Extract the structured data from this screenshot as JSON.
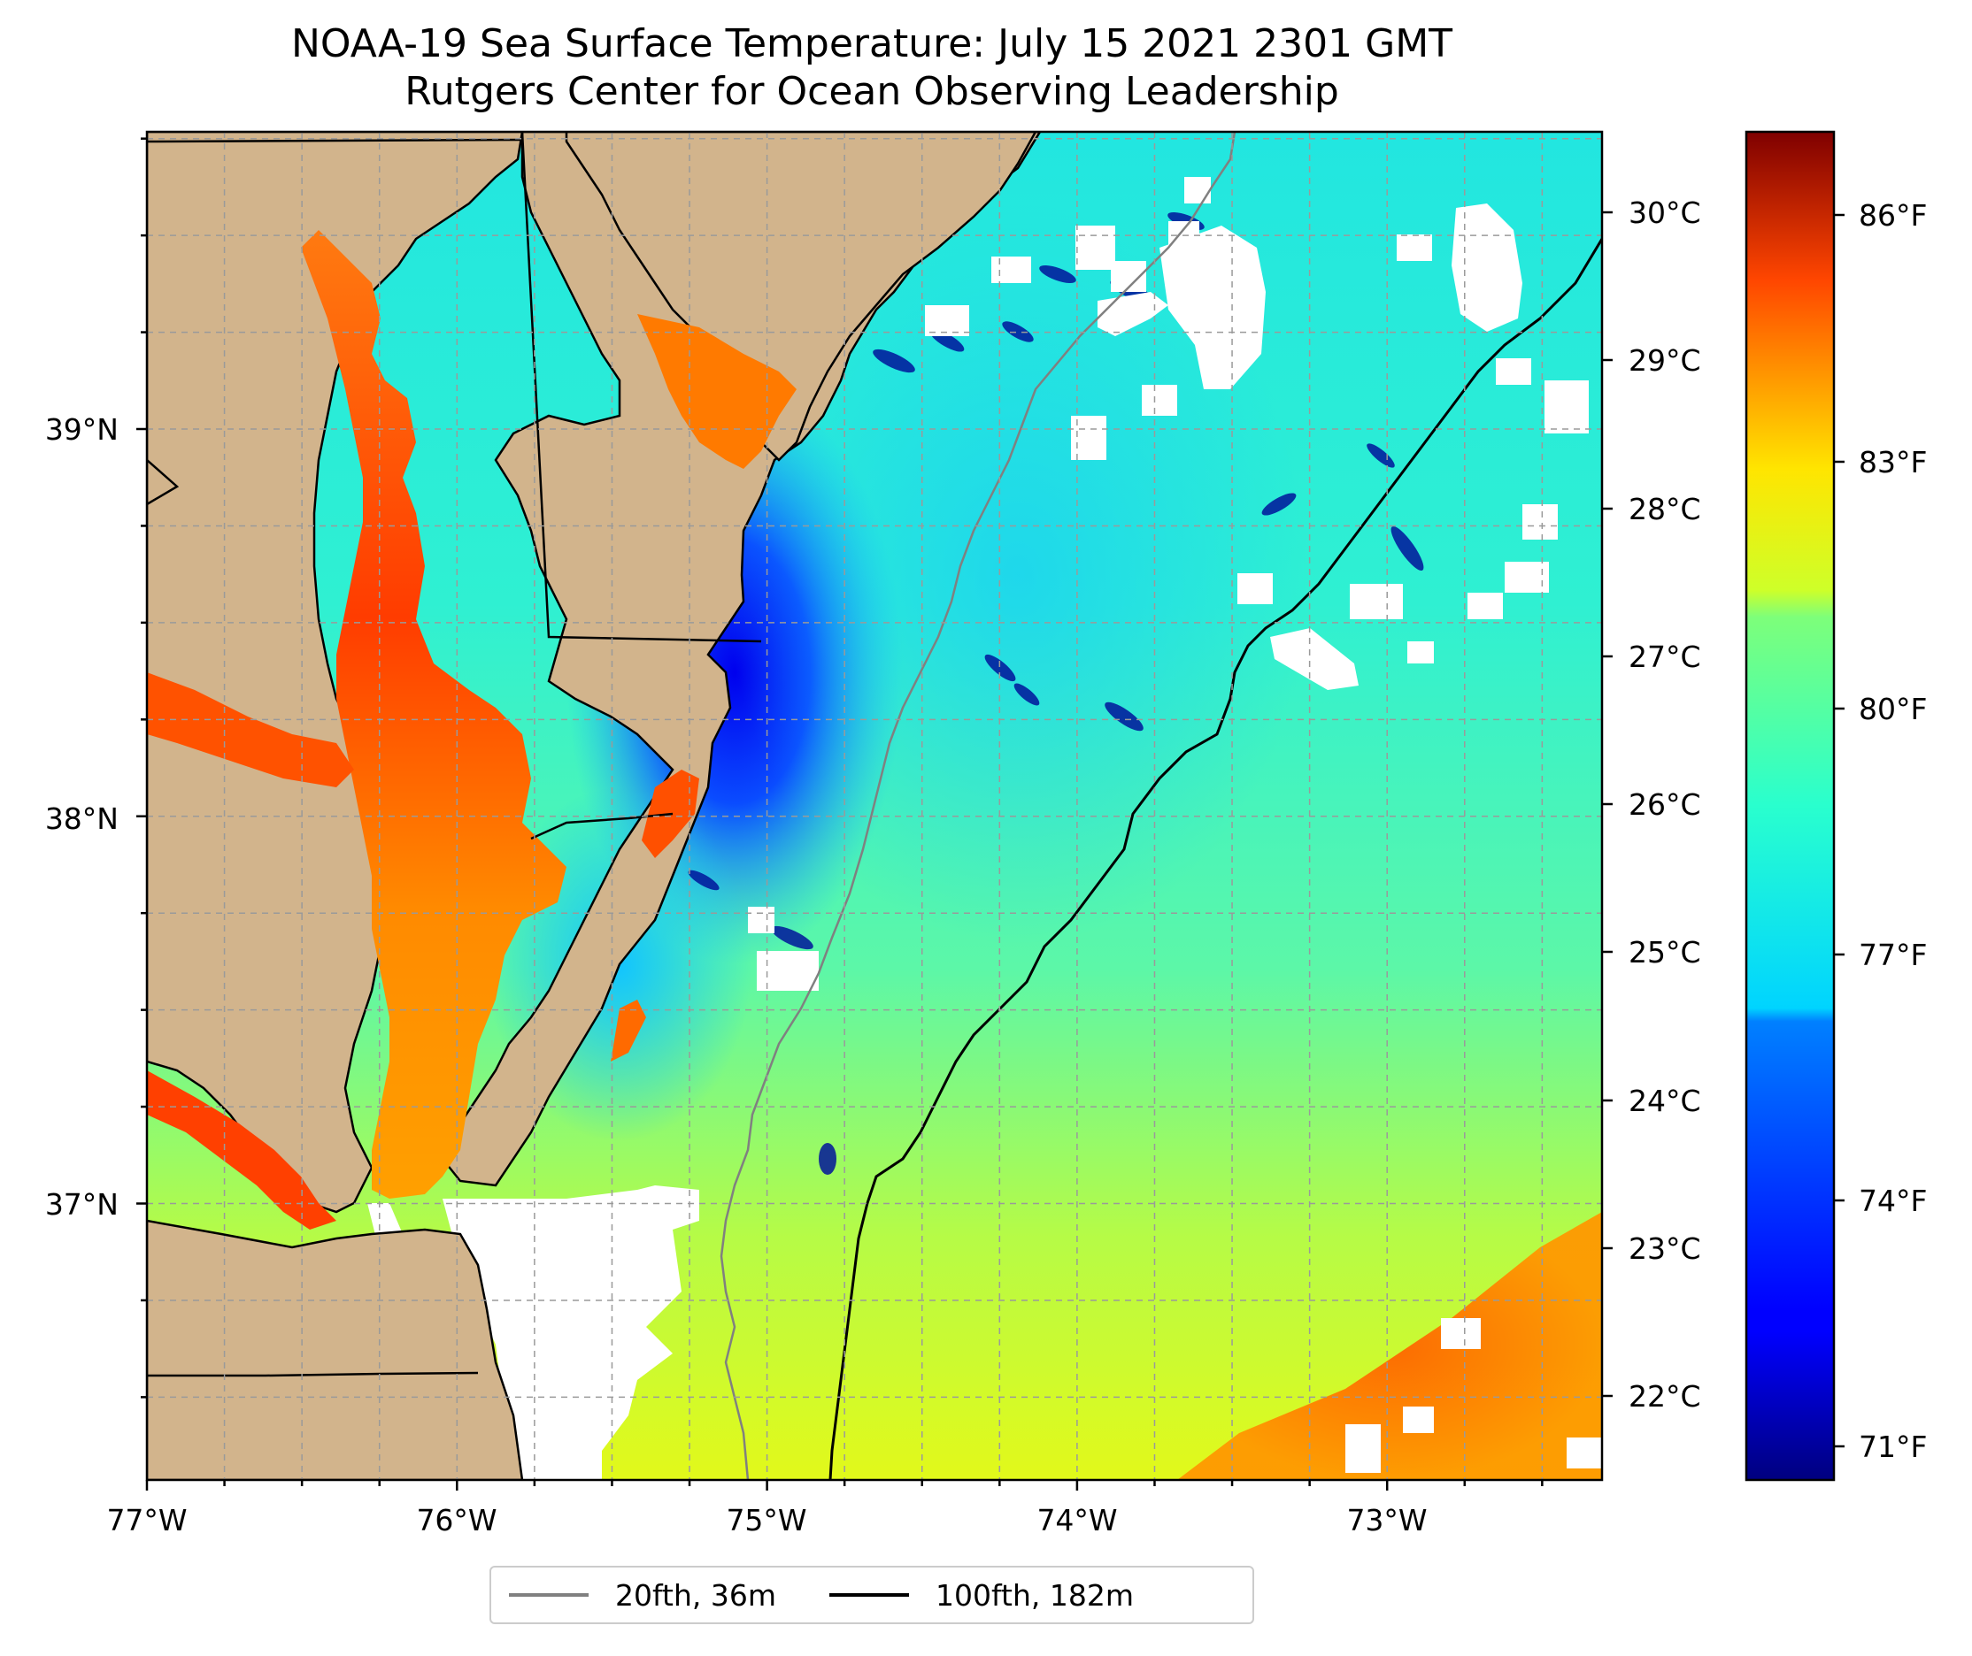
{
  "title": {
    "line1": "NOAA-19 Sea Surface Temperature: July 15 2021 2301 GMT",
    "line2": "Rutgers Center for Ocean Observing Leadership"
  },
  "map": {
    "lon_labels": [
      "77°W",
      "76°W",
      "75°W",
      "74°W",
      "73°W"
    ],
    "lat_labels": [
      "39°N",
      "38°N",
      "37°N"
    ],
    "land_color": "#d2b48c",
    "nodata_color": "#ffffff"
  },
  "colorbar": {
    "celsius_labels": [
      "30°C",
      "29°C",
      "28°C",
      "27°C",
      "26°C",
      "25°C",
      "24°C",
      "23°C",
      "22°C"
    ],
    "fahrenheit_labels": [
      "86°F",
      "83°F",
      "80°F",
      "77°F",
      "74°F",
      "71°F"
    ],
    "colormap": "jet"
  },
  "legend": {
    "items": [
      {
        "label": "20fth, 36m",
        "color": "#808080"
      },
      {
        "label": "100fth, 182m",
        "color": "#000000"
      }
    ]
  }
}
